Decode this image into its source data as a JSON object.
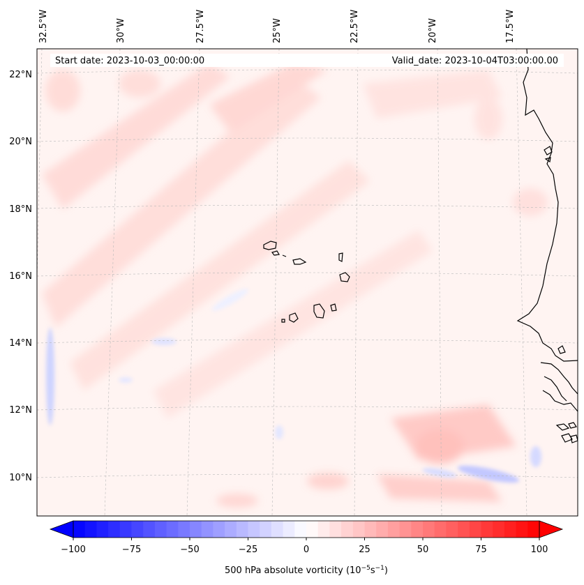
{
  "map": {
    "start_date": "Start date: 2023-10-03_00:00:00",
    "valid_date": "Valid_date: 2023-10-04T03:00:00.00",
    "lon_labels": [
      "32.5°W",
      "30°W",
      "27.5°W",
      "25°W",
      "22.5°W",
      "20°W",
      "17.5°W"
    ],
    "lat_labels": [
      "22°N",
      "20°N",
      "18°N",
      "16°N",
      "14°N",
      "12°N",
      "10°N"
    ],
    "field": "500 hPa absolute vorticity",
    "islands": "Cape Verde",
    "coastline": "West Africa"
  },
  "colorbar": {
    "label_main": "500 hPa absolute vorticity (10",
    "label_exp1": "−5",
    "label_mid": "s",
    "label_exp2": "−1",
    "label_end": ")",
    "ticks": [
      "−100",
      "−75",
      "−50",
      "−25",
      "0",
      "25",
      "50",
      "75",
      "100"
    ],
    "min": -100,
    "max": 100,
    "colors": {
      "negative": "#0000ff",
      "zero": "#ffffff",
      "positive": "#ff0000"
    }
  }
}
